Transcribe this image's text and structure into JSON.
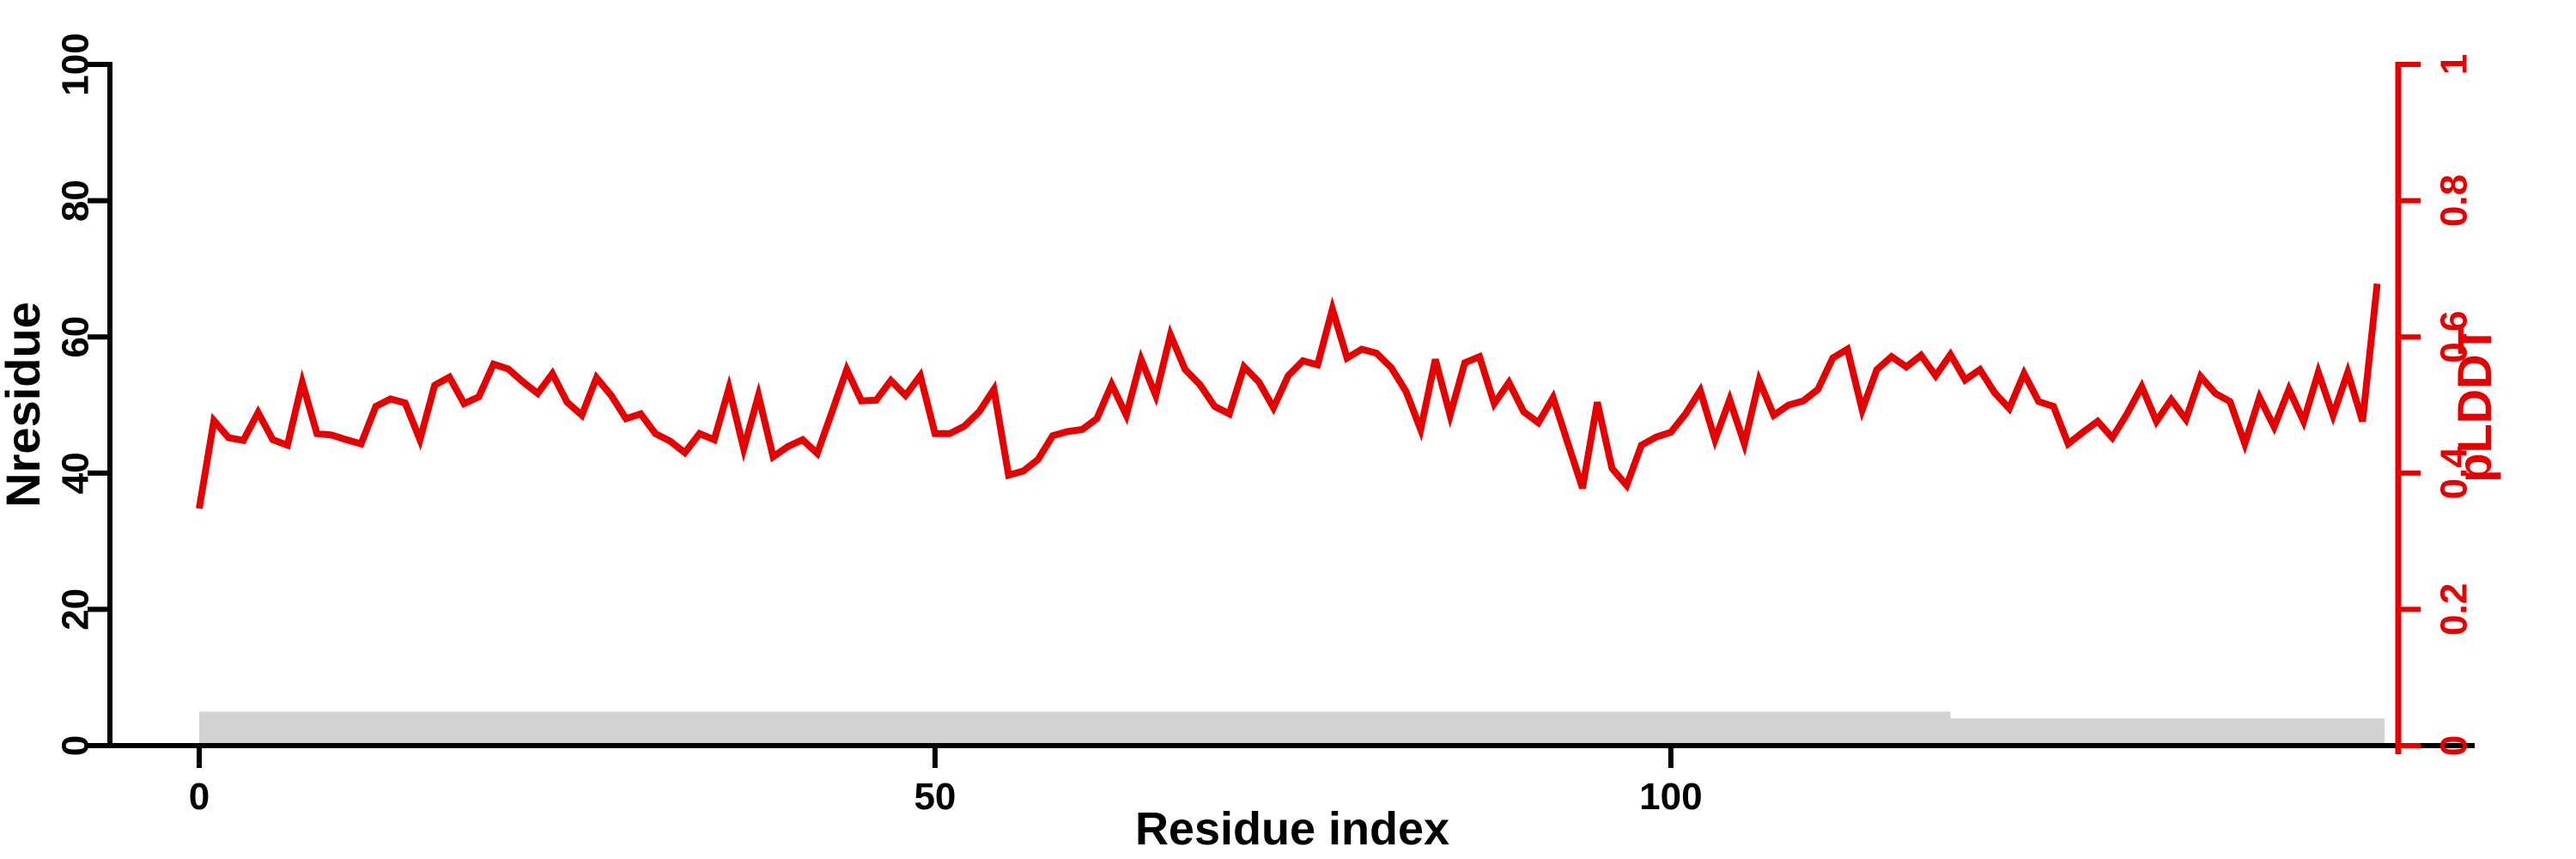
{
  "figure": {
    "background": "#ffffff"
  },
  "chart_data": {
    "type": "line",
    "title": "",
    "xlabel": "Residue index",
    "grid": false,
    "legend": "none",
    "axes": {
      "bottom": {
        "label": "Residue index",
        "ticks": [
          0,
          50,
          100
        ],
        "tick_labels": [
          "0",
          "50",
          "100"
        ],
        "range": [
          0,
          150
        ],
        "color": "#000000"
      },
      "left": {
        "label": "Nresidue",
        "ticks": [
          0,
          20,
          40,
          60,
          80,
          100
        ],
        "tick_labels": [
          "0",
          "20",
          "40",
          "60",
          "80",
          "100"
        ],
        "range": [
          0,
          100
        ],
        "color": "#000000"
      },
      "right": {
        "label": "pLDDT",
        "ticks": [
          0,
          0.2,
          0.4,
          0.6,
          0.8,
          1
        ],
        "tick_labels": [
          "0",
          "0.2",
          "0.4",
          "0.6",
          "0.8",
          "1"
        ],
        "range": [
          0,
          1
        ],
        "color": "#e60000"
      }
    },
    "series": [
      {
        "name": "Nresidue",
        "type": "bar",
        "axis": "left",
        "color": "#d2d2d2",
        "segments": [
          {
            "from": 0,
            "to": 119,
            "value": 5
          },
          {
            "from": 119,
            "to": 148.5,
            "value": 4
          }
        ]
      },
      {
        "name": "pLDDT",
        "type": "line",
        "axis": "right",
        "color": "#e60000",
        "x_start": 0,
        "x_step": 1,
        "values": [
          0.348,
          0.477,
          0.452,
          0.448,
          0.489,
          0.449,
          0.441,
          0.533,
          0.458,
          0.456,
          0.449,
          0.443,
          0.498,
          0.509,
          0.503,
          0.449,
          0.529,
          0.541,
          0.502,
          0.512,
          0.56,
          0.553,
          0.534,
          0.517,
          0.546,
          0.504,
          0.485,
          0.54,
          0.514,
          0.48,
          0.487,
          0.458,
          0.447,
          0.43,
          0.458,
          0.449,
          0.525,
          0.436,
          0.514,
          0.424,
          0.439,
          0.449,
          0.429,
          0.49,
          0.552,
          0.506,
          0.507,
          0.536,
          0.514,
          0.543,
          0.458,
          0.458,
          0.469,
          0.49,
          0.523,
          0.397,
          0.403,
          0.42,
          0.455,
          0.461,
          0.464,
          0.48,
          0.53,
          0.485,
          0.567,
          0.514,
          0.603,
          0.552,
          0.53,
          0.498,
          0.487,
          0.556,
          0.534,
          0.496,
          0.543,
          0.565,
          0.559,
          0.641,
          0.569,
          0.582,
          0.576,
          0.555,
          0.52,
          0.464,
          0.567,
          0.485,
          0.562,
          0.571,
          0.502,
          0.533,
          0.49,
          0.474,
          0.511,
          0.444,
          0.378,
          0.504,
          0.407,
          0.382,
          0.441,
          0.453,
          0.46,
          0.487,
          0.521,
          0.449,
          0.508,
          0.443,
          0.536,
          0.485,
          0.5,
          0.506,
          0.523,
          0.569,
          0.582,
          0.493,
          0.552,
          0.571,
          0.556,
          0.573,
          0.543,
          0.574,
          0.537,
          0.552,
          0.518,
          0.495,
          0.546,
          0.505,
          0.498,
          0.443,
          0.46,
          0.476,
          0.452,
          0.487,
          0.527,
          0.476,
          0.508,
          0.479,
          0.542,
          0.517,
          0.505,
          0.443,
          0.511,
          0.468,
          0.523,
          0.476,
          0.548,
          0.485,
          0.548,
          0.476,
          0.678
        ]
      }
    ]
  }
}
